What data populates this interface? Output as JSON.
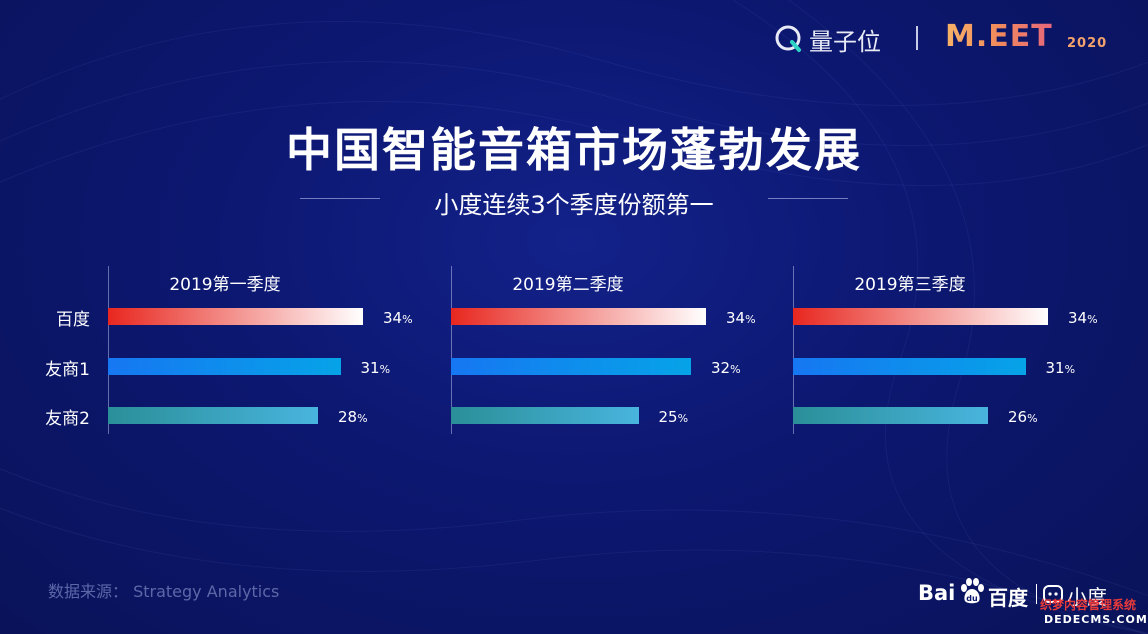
{
  "header": {
    "brand_cn": "量子位",
    "event": "M.EET",
    "event_year": "2020"
  },
  "title": "中国智能音箱市场蓬勃发展",
  "subtitle": "小度连续3个季度份额第一",
  "chart_data": {
    "type": "bar",
    "orientation": "horizontal",
    "categories": [
      "百度",
      "友商1",
      "友商2"
    ],
    "value_unit": "%",
    "xlim": [
      0,
      40
    ],
    "panels": [
      {
        "title": "2019第一季度",
        "values": [
          34,
          31,
          28
        ]
      },
      {
        "title": "2019第二季度",
        "values": [
          34,
          32,
          25
        ]
      },
      {
        "title": "2019第三季度",
        "values": [
          34,
          31,
          26
        ]
      }
    ],
    "bar_colors": [
      {
        "from": "#e8271f",
        "to": "#ffffff"
      },
      {
        "from": "#1677f2",
        "to": "#06a3e8"
      },
      {
        "from": "#2a8f98",
        "to": "#49b4de"
      }
    ]
  },
  "source": "数据来源： Strategy Analytics",
  "footer": {
    "baidu_latin": "Bai",
    "baidu_du": "du",
    "baidu_cn": "百度",
    "xiaodu": "小度"
  },
  "watermark": {
    "line1": "织梦内容管理系统",
    "line2": "DEDECMS.COM"
  }
}
